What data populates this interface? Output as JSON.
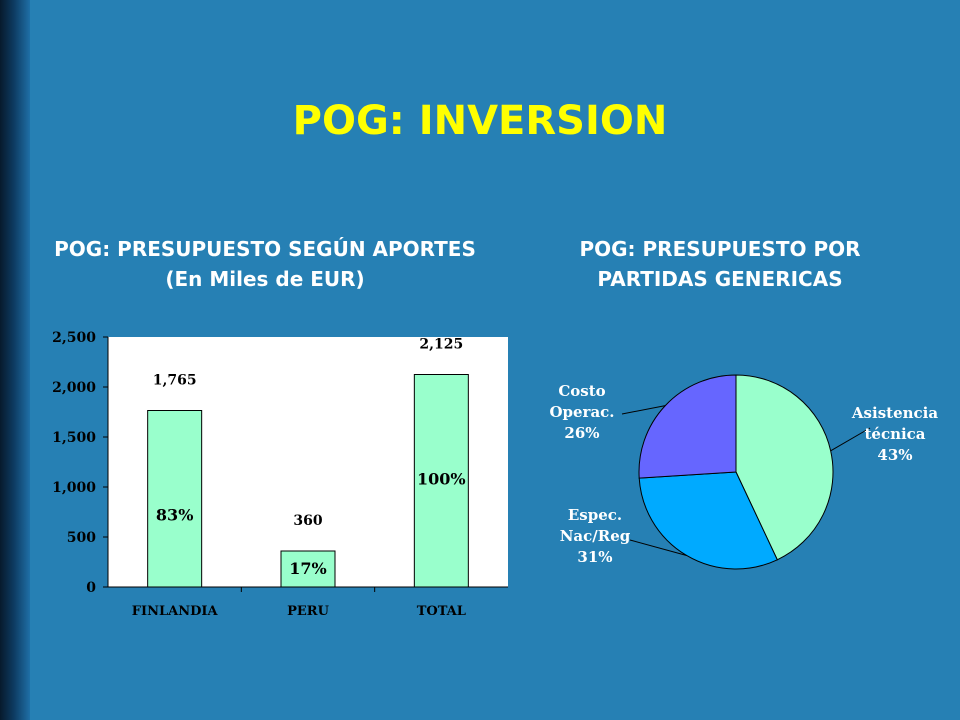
{
  "slide": {
    "title": "POG: INVERSION"
  },
  "colors": {
    "background": "#2680b4",
    "title": "#ffff00",
    "subtitle": "#ffffff",
    "bar_fill": "#99ffcc",
    "plot_bg": "#ffffff",
    "pie_colors": [
      "#99ffcc",
      "#00aaff",
      "#6666ff"
    ]
  },
  "chart_data": [
    {
      "type": "bar",
      "title_line1": "POG: PRESUPUESTO SEGÚN APORTES",
      "title_line2": "(En Miles de EUR)",
      "categories": [
        "FINLANDIA",
        "PERU",
        "TOTAL"
      ],
      "values": [
        1765,
        360,
        2125
      ],
      "value_labels": [
        "1,765",
        "360",
        "2,125"
      ],
      "percent_labels": [
        "83%",
        "17%",
        "100%"
      ],
      "ylim": [
        0,
        2500
      ],
      "yticks": [
        0,
        500,
        1000,
        1500,
        2000,
        2500
      ],
      "ytick_labels": [
        "0",
        "500",
        "1,000",
        "1,500",
        "2,000",
        "2,500"
      ],
      "grid": false
    },
    {
      "type": "pie",
      "title_line1": "POG: PRESUPUESTO POR",
      "title_line2": "PARTIDAS GENERICAS",
      "slices": [
        {
          "label_lines": [
            "Asistencia",
            "técnica",
            "43%"
          ],
          "value": 43
        },
        {
          "label_lines": [
            "Espec.",
            "Nac/Reg",
            "31%"
          ],
          "value": 31
        },
        {
          "label_lines": [
            "Costo",
            "Operac.",
            "26%"
          ],
          "value": 26
        }
      ]
    }
  ]
}
